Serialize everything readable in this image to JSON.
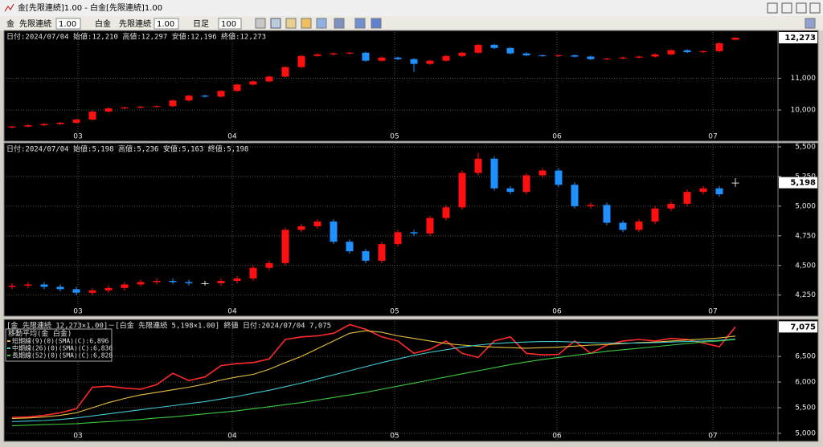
{
  "window": {
    "title": "金[先限連続]1.00 - 白金[先限連続]1.00"
  },
  "toolbar": {
    "symbol1": "金",
    "contract1": "先限連続",
    "mult1": "1.00",
    "symbol2": "白金",
    "contract2": "先限連続",
    "mult2": "1.00",
    "period": "日足",
    "count": "100"
  },
  "chart_data": [
    {
      "type": "candlestick",
      "header": "日付:2024/07/04 始値:12,210 高値:12,297 安値:12,196 終値:12,273",
      "last_label": "12,273",
      "up_color": "#ff1010",
      "down_color": "#2090ff",
      "x": [
        0,
        1,
        2,
        3,
        4,
        5,
        6,
        7,
        8,
        9,
        10,
        11,
        12,
        13,
        14,
        15,
        16,
        17,
        18,
        19,
        20,
        21,
        22,
        23,
        24,
        25,
        26,
        27,
        28,
        29,
        30,
        31,
        32,
        33,
        34,
        35,
        36,
        37,
        38,
        39,
        40,
        41,
        42,
        43,
        44,
        45
      ],
      "open": [
        9450,
        9480,
        9520,
        9560,
        9600,
        9700,
        9950,
        10050,
        10080,
        10100,
        10120,
        10300,
        10450,
        10420,
        10600,
        10800,
        10900,
        11050,
        11350,
        11700,
        11750,
        11780,
        11800,
        11550,
        11650,
        11600,
        11450,
        11550,
        11700,
        11800,
        12050,
        11950,
        11780,
        11720,
        11700,
        11720,
        11680,
        11600,
        11620,
        11650,
        11680,
        11750,
        11880,
        11820,
        11850,
        12210
      ],
      "high": [
        9510,
        9550,
        9590,
        9630,
        9730,
        9980,
        10080,
        10110,
        10130,
        10150,
        10330,
        10480,
        10480,
        10630,
        10830,
        10930,
        11080,
        11380,
        11730,
        11780,
        11810,
        11830,
        11830,
        11680,
        11680,
        11630,
        11580,
        11730,
        11830,
        12080,
        12080,
        11980,
        11810,
        11750,
        11750,
        11750,
        11710,
        11650,
        11680,
        11710,
        11780,
        11910,
        11910,
        11880,
        12130,
        12297
      ],
      "low": [
        9420,
        9450,
        9490,
        9530,
        9570,
        9670,
        9920,
        10020,
        10050,
        10070,
        10090,
        10270,
        10390,
        10390,
        10570,
        10770,
        10870,
        11020,
        11320,
        11670,
        11720,
        11750,
        11520,
        11520,
        11570,
        11200,
        11420,
        11520,
        11670,
        11770,
        11920,
        11750,
        11690,
        11670,
        11670,
        11650,
        11570,
        11570,
        11590,
        11620,
        11650,
        11720,
        11790,
        11790,
        11820,
        12196
      ],
      "close": [
        9480,
        9520,
        9560,
        9600,
        9700,
        9950,
        10050,
        10080,
        10100,
        10120,
        10300,
        10450,
        10420,
        10600,
        10800,
        10900,
        11050,
        11350,
        11700,
        11750,
        11780,
        11800,
        11550,
        11650,
        11600,
        11450,
        11550,
        11700,
        11800,
        12050,
        11950,
        11780,
        11720,
        11700,
        11720,
        11680,
        11600,
        11620,
        11650,
        11680,
        11750,
        11880,
        11820,
        11850,
        12100,
        12273
      ],
      "xlim": [
        -0.5,
        47.65
      ],
      "xticks": [
        {
          "value": 4.1,
          "label": "03"
        },
        {
          "value": 13.7,
          "label": "04"
        },
        {
          "value": 23.8,
          "label": "05"
        },
        {
          "value": 33.9,
          "label": "06"
        },
        {
          "value": 43.6,
          "label": "07"
        }
      ],
      "ylim": [
        9270,
        12450
      ],
      "yticks": [
        {
          "value": 10000,
          "label": "10,000"
        },
        {
          "value": 11000,
          "label": "11,000"
        }
      ],
      "grid": true
    },
    {
      "type": "candlestick",
      "header": "日付:2024/07/04 始値:5,198 高値:5,236 安値:5,163 終値:5,198",
      "last_label": "5,198",
      "up_color": "#ff1010",
      "down_color": "#2090ff",
      "x": [
        0,
        1,
        2,
        3,
        4,
        5,
        6,
        7,
        8,
        9,
        10,
        11,
        12,
        13,
        14,
        15,
        16,
        17,
        18,
        19,
        20,
        21,
        22,
        23,
        24,
        25,
        26,
        27,
        28,
        29,
        30,
        31,
        32,
        33,
        34,
        35,
        36,
        37,
        38,
        39,
        40,
        41,
        42,
        43,
        44,
        45
      ],
      "open": [
        4320,
        4330,
        4340,
        4320,
        4300,
        4270,
        4290,
        4310,
        4340,
        4360,
        4370,
        4360,
        4350,
        4350,
        4370,
        4390,
        4480,
        4520,
        4800,
        4830,
        4870,
        4700,
        4620,
        4540,
        4680,
        4780,
        4770,
        4900,
        4990,
        5280,
        5400,
        5150,
        5120,
        5260,
        5300,
        5180,
        5000,
        5010,
        4860,
        4800,
        4870,
        4980,
        5020,
        5120,
        5150,
        5198
      ],
      "high": [
        4350,
        4360,
        4360,
        4340,
        4320,
        4310,
        4330,
        4360,
        4380,
        4390,
        4390,
        4380,
        4370,
        4390,
        4410,
        4500,
        4540,
        4820,
        4850,
        4890,
        4890,
        4720,
        4640,
        4700,
        4800,
        4800,
        4920,
        5010,
        5300,
        5450,
        5420,
        5170,
        5280,
        5320,
        5320,
        5200,
        5030,
        5030,
        4880,
        4890,
        5000,
        5040,
        5140,
        5170,
        5170,
        5236
      ],
      "low": [
        4300,
        4310,
        4300,
        4280,
        4250,
        4250,
        4270,
        4290,
        4320,
        4340,
        4340,
        4330,
        4330,
        4330,
        4350,
        4370,
        4460,
        4500,
        4780,
        4810,
        4680,
        4600,
        4520,
        4520,
        4660,
        4750,
        4750,
        4880,
        4970,
        5260,
        5130,
        5100,
        5100,
        5240,
        5160,
        4980,
        4980,
        4840,
        4780,
        4780,
        4850,
        4960,
        5000,
        5100,
        5080,
        5163
      ],
      "close": [
        4330,
        4340,
        4320,
        4300,
        4270,
        4290,
        4310,
        4340,
        4360,
        4370,
        4360,
        4350,
        4350,
        4370,
        4390,
        4480,
        4520,
        4800,
        4830,
        4870,
        4700,
        4620,
        4540,
        4680,
        4780,
        4770,
        4900,
        4990,
        5280,
        5400,
        5150,
        5120,
        5260,
        5300,
        5180,
        5000,
        5010,
        4860,
        4800,
        4870,
        4980,
        5020,
        5120,
        5150,
        5100,
        5198
      ],
      "xlim": [
        -0.5,
        47.65
      ],
      "xticks": [
        {
          "value": 4.1,
          "label": "03"
        },
        {
          "value": 13.7,
          "label": "04"
        },
        {
          "value": 23.8,
          "label": "05"
        },
        {
          "value": 33.9,
          "label": "06"
        },
        {
          "value": 43.6,
          "label": "07"
        }
      ],
      "ylim": [
        4140,
        5520
      ],
      "yticks": [
        {
          "value": 4250,
          "label": "4,250"
        },
        {
          "value": 4500,
          "label": "4,500"
        },
        {
          "value": 4750,
          "label": "4,750"
        },
        {
          "value": 5000,
          "label": "5,000"
        },
        {
          "value": 5250,
          "label": "5,250"
        },
        {
          "value": 5500,
          "label": "5,500"
        }
      ],
      "grid": true
    },
    {
      "type": "line",
      "header": "[金 先限連続 12,273×1.00]－[白金 先限連続 5,198×1.00] 終値 日付:2024/07/04 7,075",
      "legend_title": "移動平均(金 白金)",
      "last_label": "7,075",
      "x": [
        0,
        1,
        2,
        3,
        4,
        5,
        6,
        7,
        8,
        9,
        10,
        11,
        12,
        13,
        14,
        15,
        16,
        17,
        18,
        19,
        20,
        21,
        22,
        23,
        24,
        25,
        26,
        27,
        28,
        29,
        30,
        31,
        32,
        33,
        34,
        35,
        36,
        37,
        38,
        39,
        40,
        41,
        42,
        43,
        44,
        45
      ],
      "series": [
        {
          "name": "終値",
          "color": "#ff2a2a",
          "values": [
            5310,
            5320,
            5350,
            5400,
            5480,
            5900,
            5920,
            5880,
            5860,
            5950,
            6170,
            6030,
            6100,
            6320,
            6360,
            6380,
            6450,
            6830,
            6880,
            6900,
            6950,
            7120,
            7030,
            6880,
            6800,
            6560,
            6640,
            6800,
            6560,
            6480,
            6800,
            6880,
            6560,
            6530,
            6540,
            6800,
            6560,
            6720,
            6800,
            6830,
            6800,
            6850,
            6830,
            6760,
            6690,
            7075
          ]
        },
        {
          "name": "短期線(9)(0)(SMA)(C):6,896",
          "color": "#e8c040",
          "values": [
            5290,
            5300,
            5320,
            5350,
            5400,
            5500,
            5600,
            5680,
            5750,
            5800,
            5850,
            5900,
            5960,
            6040,
            6100,
            6150,
            6250,
            6380,
            6500,
            6650,
            6800,
            6950,
            7000,
            6970,
            6900,
            6850,
            6800,
            6750,
            6720,
            6700,
            6680,
            6670,
            6660,
            6670,
            6680,
            6700,
            6720,
            6730,
            6750,
            6770,
            6780,
            6800,
            6820,
            6840,
            6860,
            6896
          ]
        },
        {
          "name": "中期線(26)(0)(SMA)(C):6,836",
          "color": "#40c8d0",
          "values": [
            5230,
            5240,
            5250,
            5270,
            5300,
            5340,
            5380,
            5420,
            5460,
            5500,
            5540,
            5580,
            5620,
            5670,
            5720,
            5780,
            5840,
            5910,
            5980,
            6060,
            6140,
            6220,
            6300,
            6380,
            6450,
            6520,
            6580,
            6630,
            6680,
            6720,
            6750,
            6770,
            6780,
            6790,
            6790,
            6780,
            6770,
            6760,
            6760,
            6760,
            6770,
            6780,
            6790,
            6800,
            6815,
            6836
          ]
        },
        {
          "name": "長期線(52)(0)(SMA)(C):6,828",
          "color": "#3cc83c",
          "values": [
            5150,
            5160,
            5170,
            5180,
            5190,
            5210,
            5230,
            5250,
            5270,
            5300,
            5320,
            5350,
            5380,
            5410,
            5440,
            5480,
            5520,
            5560,
            5600,
            5650,
            5700,
            5750,
            5800,
            5860,
            5920,
            5980,
            6040,
            6100,
            6160,
            6220,
            6280,
            6340,
            6390,
            6440,
            6480,
            6520,
            6560,
            6600,
            6630,
            6660,
            6690,
            6720,
            6750,
            6780,
            6800,
            6828
          ]
        }
      ],
      "xlim": [
        -0.5,
        47.65
      ],
      "xticks": [
        {
          "value": 4.1,
          "label": "03"
        },
        {
          "value": 13.7,
          "label": "04"
        },
        {
          "value": 23.8,
          "label": "05"
        },
        {
          "value": 33.9,
          "label": "06"
        },
        {
          "value": 43.6,
          "label": "07"
        }
      ],
      "ylim": [
        4875,
        7190
      ],
      "yticks": [
        {
          "value": 5000,
          "label": "5,000"
        },
        {
          "value": 5500,
          "label": "5,500"
        },
        {
          "value": 6000,
          "label": "6,000"
        },
        {
          "value": 6500,
          "label": "6,500"
        }
      ],
      "grid": true
    }
  ]
}
